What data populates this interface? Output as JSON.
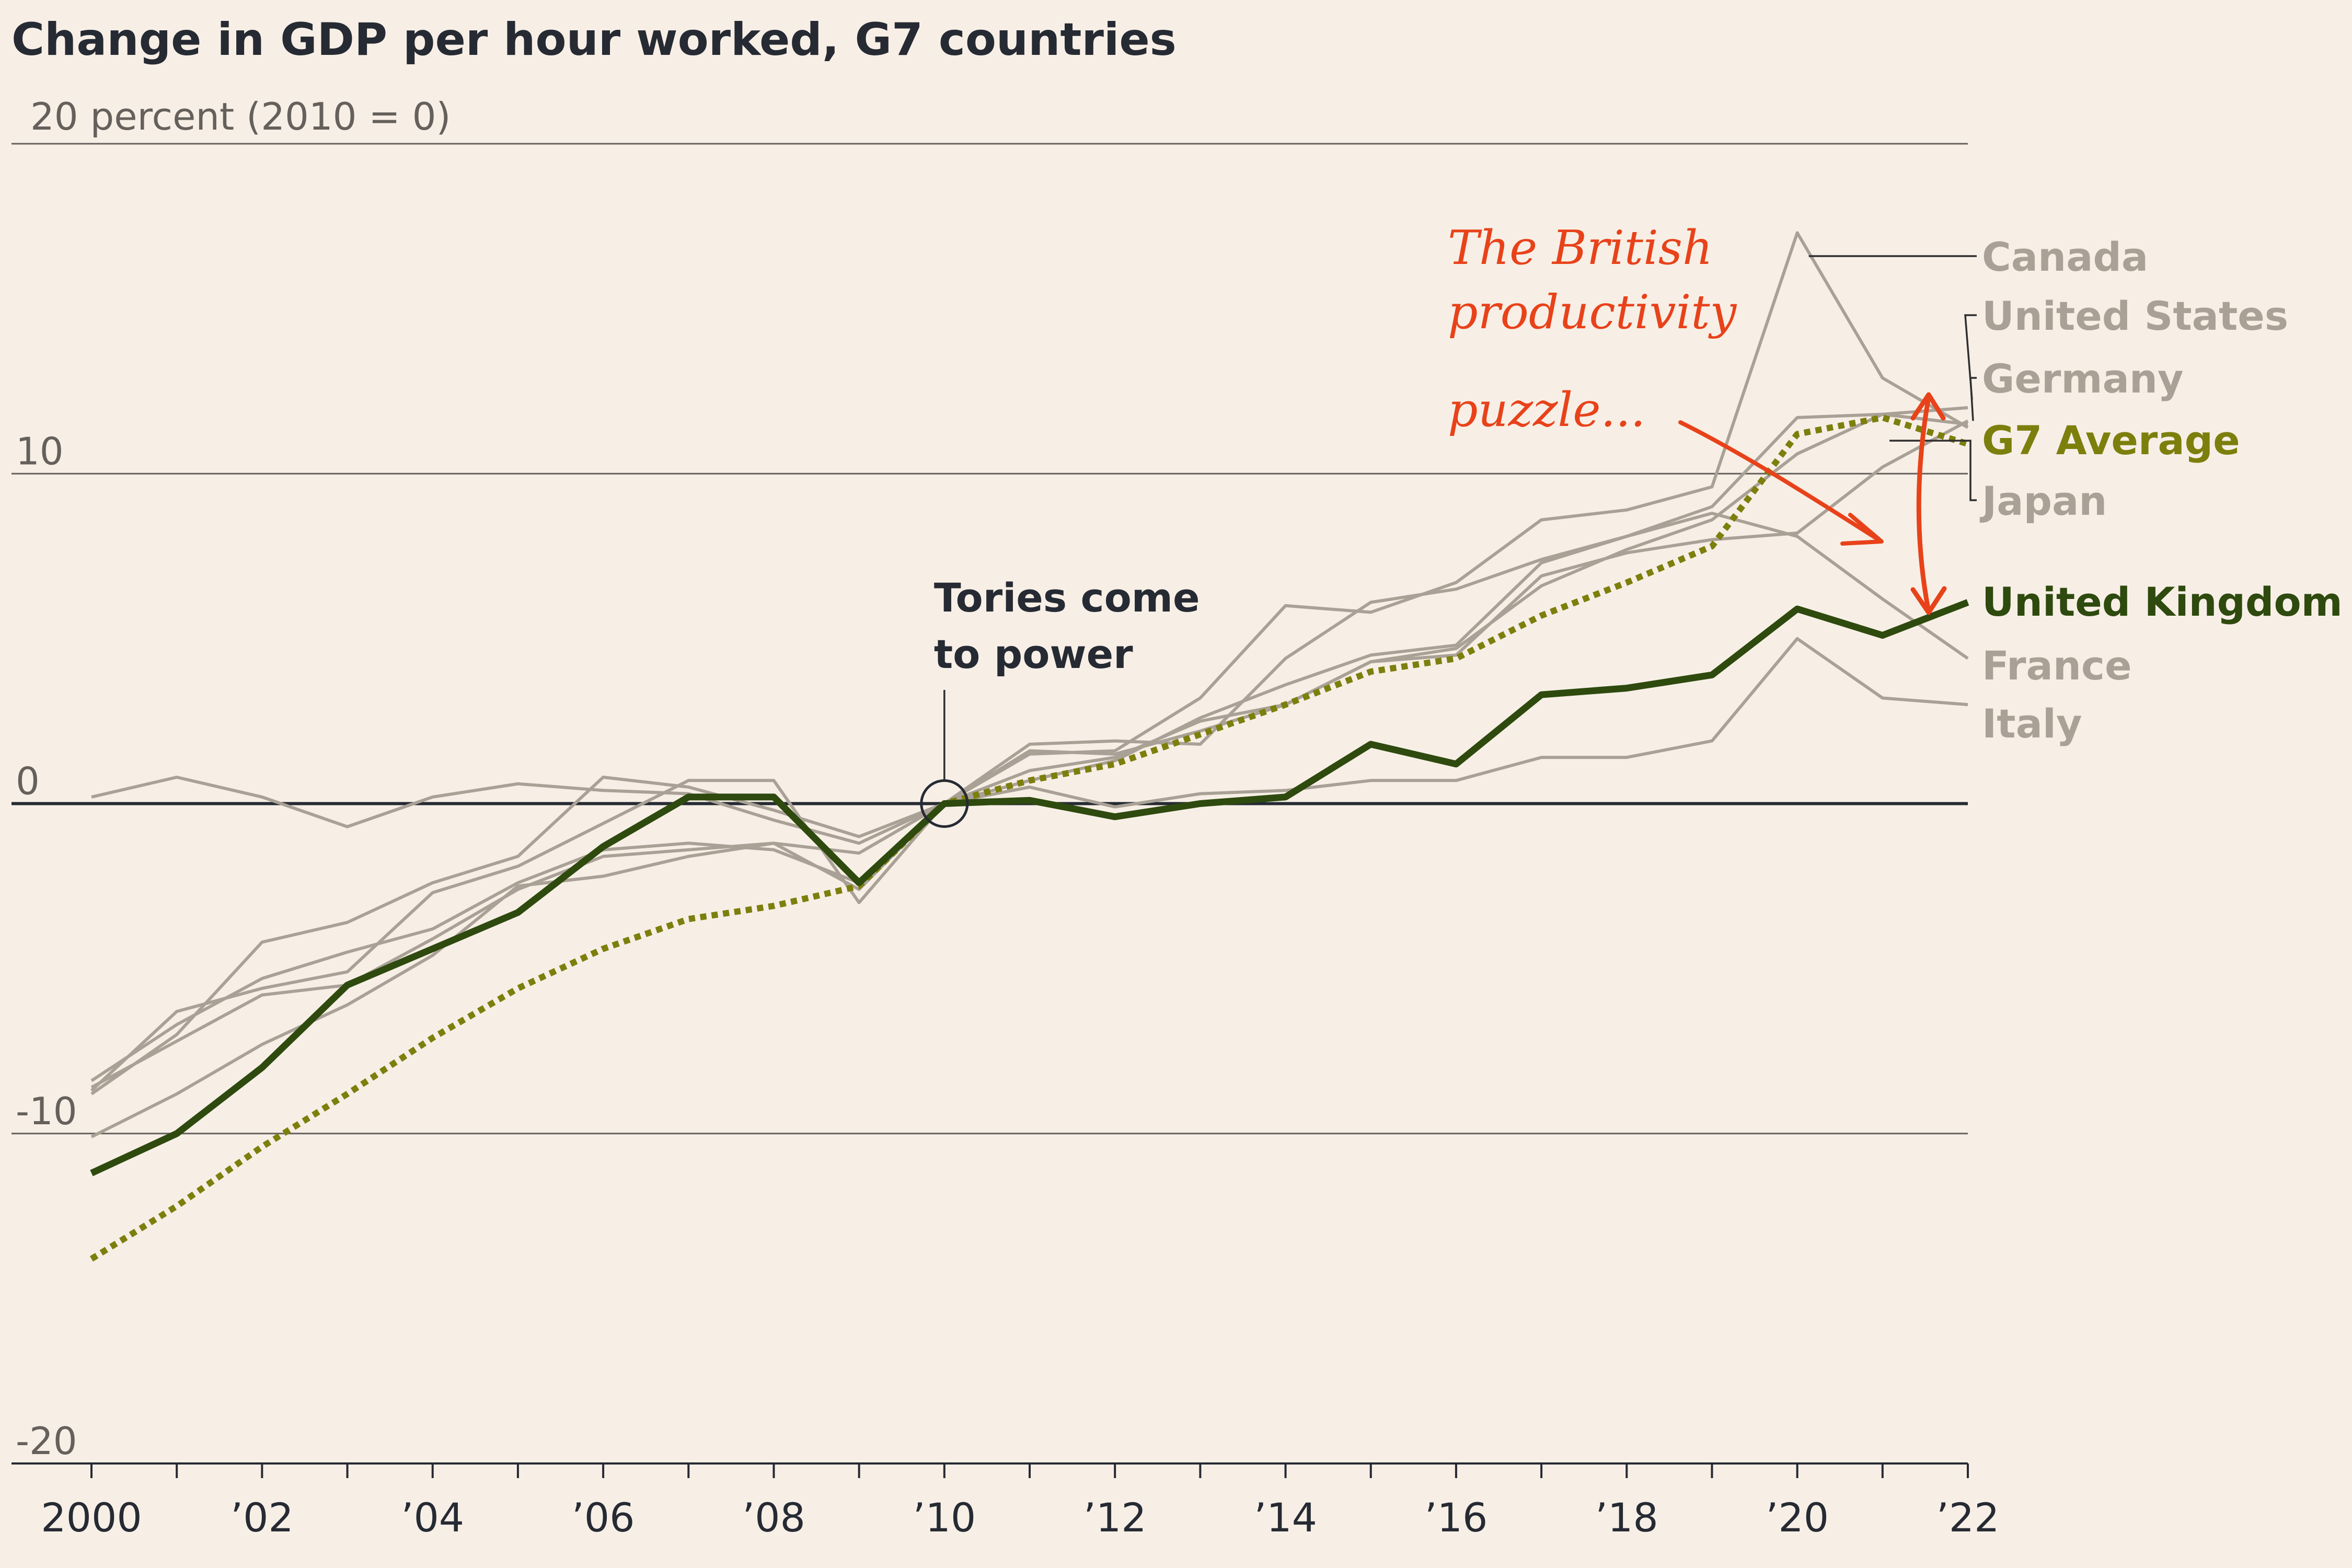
{
  "chart_data": {
    "type": "line",
    "title": "Change in GDP per hour worked, G7 countries",
    "unit_label": "20 percent (2010 = 0)",
    "ylim": [
      -20,
      20
    ],
    "yticks": [
      {
        "value": 10,
        "label": "10"
      },
      {
        "value": 0,
        "label": "0"
      },
      {
        "value": -10,
        "label": "-10"
      },
      {
        "value": -20,
        "label": "-20"
      }
    ],
    "x": [
      2000,
      2001,
      2002,
      2003,
      2004,
      2005,
      2006,
      2007,
      2008,
      2009,
      2010,
      2011,
      2012,
      2013,
      2014,
      2015,
      2016,
      2017,
      2018,
      2019,
      2020,
      2021,
      2022
    ],
    "xtick_labels": [
      {
        "year": 2000,
        "label": "2000"
      },
      {
        "year": 2002,
        "label": "’02"
      },
      {
        "year": 2004,
        "label": "’04"
      },
      {
        "year": 2006,
        "label": "’06"
      },
      {
        "year": 2008,
        "label": "’08"
      },
      {
        "year": 2010,
        "label": "’10"
      },
      {
        "year": 2012,
        "label": "’12"
      },
      {
        "year": 2014,
        "label": "’14"
      },
      {
        "year": 2016,
        "label": "’16"
      },
      {
        "year": 2018,
        "label": "’18"
      },
      {
        "year": 2020,
        "label": "’20"
      },
      {
        "year": 2022,
        "label": "’22"
      }
    ],
    "series": [
      {
        "name": "Canada",
        "style": "context",
        "values": [
          -8.8,
          -7.0,
          -4.2,
          -3.6,
          -2.4,
          -1.6,
          0.8,
          0.5,
          -0.2,
          -1.0,
          0,
          1.5,
          1.6,
          3.2,
          6.0,
          5.8,
          6.7,
          8.6,
          8.9,
          9.6,
          17.3,
          12.9,
          11.4
        ]
      },
      {
        "name": "United States",
        "style": "context",
        "values": [
          -10.1,
          -8.8,
          -7.3,
          -6.1,
          -4.6,
          -2.5,
          -2.2,
          -1.6,
          -1.2,
          -1.5,
          0,
          0.7,
          1.3,
          2.6,
          3.6,
          4.5,
          4.8,
          7.3,
          8.1,
          9.0,
          11.7,
          11.8,
          12.0
        ]
      },
      {
        "name": "Germany",
        "style": "context",
        "values": [
          -8.4,
          -6.7,
          -5.3,
          -4.5,
          -3.8,
          -2.4,
          -1.4,
          -1.2,
          -1.4,
          -2.4,
          0,
          1.6,
          1.5,
          2.2,
          3.0,
          4.3,
          4.5,
          6.9,
          7.6,
          8.0,
          8.2,
          10.2,
          11.6
        ]
      },
      {
        "name": "Japan",
        "style": "context",
        "values": [
          -8.6,
          -7.2,
          -5.8,
          -5.5,
          -4.1,
          -2.6,
          -1.6,
          -1.4,
          -1.2,
          -2.6,
          0,
          1.0,
          1.4,
          2.5,
          3.0,
          4.3,
          4.7,
          6.6,
          7.7,
          8.6,
          10.6,
          11.8,
          11.5
        ]
      },
      {
        "name": "France",
        "style": "context",
        "values": [
          -8.7,
          -6.3,
          -5.6,
          -5.1,
          -2.7,
          -1.9,
          -0.6,
          0.7,
          0.7,
          -3.0,
          0,
          1.8,
          1.9,
          1.8,
          4.4,
          6.1,
          6.5,
          7.4,
          8.1,
          8.8,
          8.1,
          6.2,
          4.4
        ]
      },
      {
        "name": "Italy",
        "style": "context",
        "values": [
          0.2,
          0.8,
          0.2,
          -0.7,
          0.2,
          0.6,
          0.4,
          0.3,
          -0.5,
          -1.2,
          0,
          0.5,
          -0.1,
          0.3,
          0.4,
          0.7,
          0.7,
          1.4,
          1.4,
          1.9,
          5.0,
          3.2,
          3.0
        ]
      },
      {
        "name": "G7 Average",
        "style": "g7",
        "values": [
          -13.8,
          -12.2,
          -10.4,
          -8.8,
          -7.1,
          -5.6,
          -4.4,
          -3.5,
          -3.1,
          -2.5,
          0,
          0.7,
          1.2,
          2.1,
          3.0,
          4.0,
          4.4,
          5.7,
          6.7,
          7.8,
          11.2,
          11.7,
          10.9
        ]
      },
      {
        "name": "United Kingdom",
        "style": "uk",
        "values": [
          -11.2,
          -10.0,
          -8.0,
          -5.5,
          -4.4,
          -3.3,
          -1.3,
          0.2,
          0.2,
          -2.4,
          0,
          0.1,
          -0.4,
          0,
          0.2,
          1.8,
          1.2,
          3.3,
          3.5,
          3.9,
          5.9,
          5.1,
          6.1
        ]
      }
    ],
    "labels": [
      {
        "series": "Canada",
        "text": "Canada",
        "color": "#aaa196"
      },
      {
        "series": "United States",
        "text": "United States",
        "color": "#aaa196"
      },
      {
        "series": "Germany",
        "text": "Germany",
        "color": "#aaa196"
      },
      {
        "series": "G7 Average",
        "text": "G7 Average",
        "color": "#7c7f0c"
      },
      {
        "series": "Japan",
        "text": "Japan",
        "color": "#aaa196"
      },
      {
        "series": "United Kingdom",
        "text": "United Kingdom",
        "color": "#2e4a0e"
      },
      {
        "series": "France",
        "text": "France",
        "color": "#aaa196"
      },
      {
        "series": "Italy",
        "text": "Italy",
        "color": "#aaa196"
      }
    ],
    "event_annotation": {
      "year": 2010,
      "line1": "Tories come",
      "line2": "to power"
    },
    "puzzle_annotation": {
      "lines": [
        "The British",
        "productivity",
        "puzzle..."
      ],
      "color": "#e8421a"
    },
    "colors": {
      "context": "#aaa196",
      "g7": "#7c7f0c",
      "uk": "#2e4a0e",
      "background": "#f7efe6"
    }
  }
}
